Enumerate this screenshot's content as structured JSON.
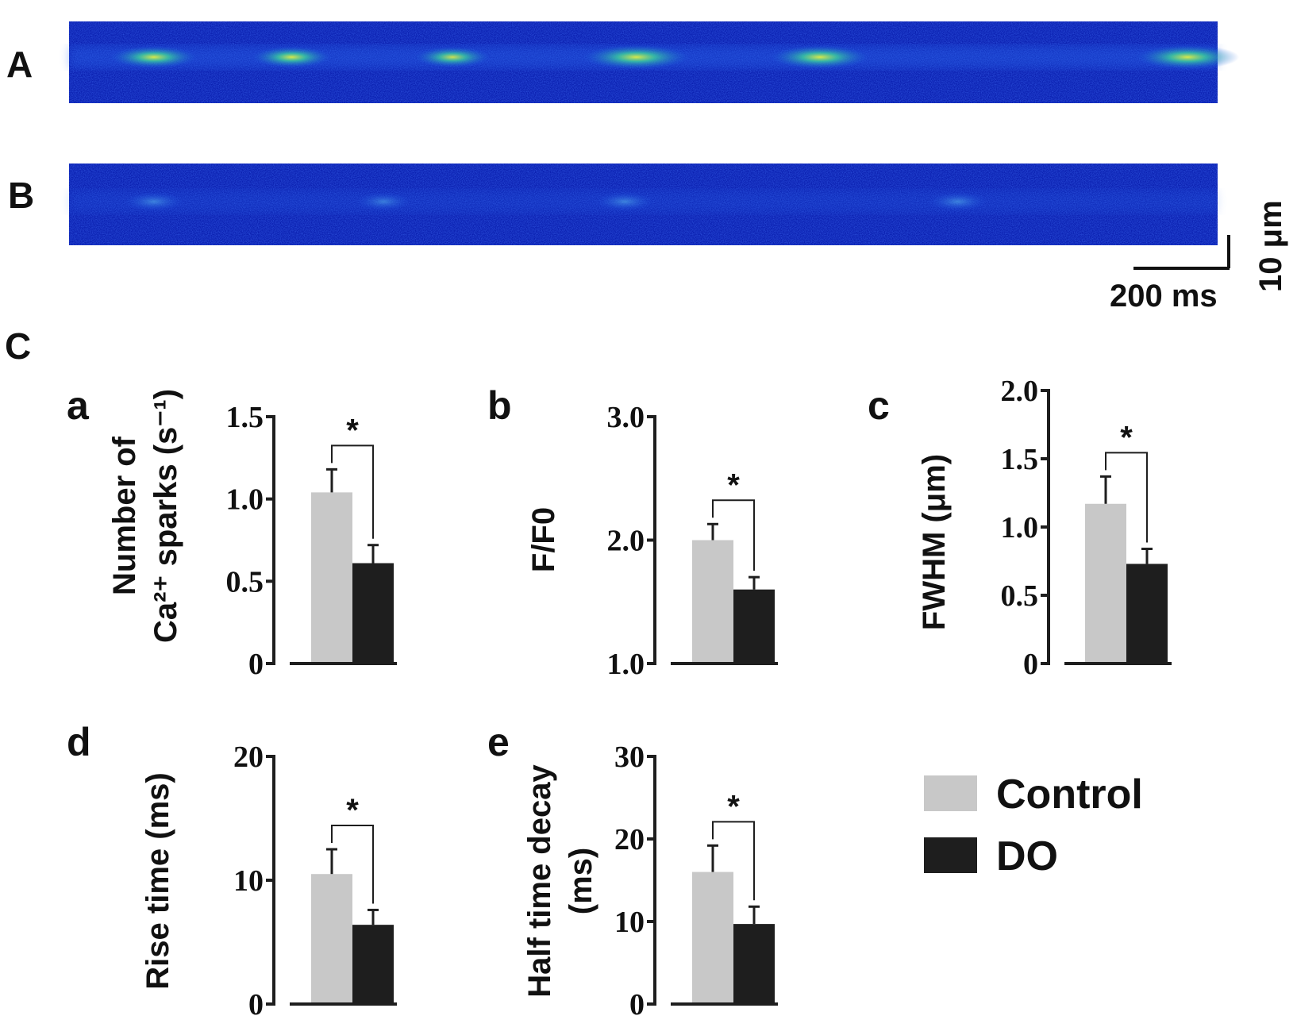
{
  "panel_labels": {
    "A": "A",
    "B": "B",
    "C": "C"
  },
  "scale_bar": {
    "time_label": "200 ms",
    "space_label": "10 μm"
  },
  "legend": {
    "items": [
      {
        "label": "Control",
        "color": "#c8c8c8"
      },
      {
        "label": "DO",
        "color": "#1e1e1e"
      }
    ]
  },
  "colors": {
    "control": "#c8c8c8",
    "do": "#1e1e1e",
    "linescan_bg": "#0a1fb0",
    "axis": "#1e1e1e"
  },
  "linescans": [
    {
      "name": "A",
      "spark_times": [
        0.06,
        0.18,
        0.32,
        0.48,
        0.64,
        0.96
      ],
      "spark_strength": [
        0.7,
        0.6,
        0.55,
        0.95,
        0.85,
        0.9
      ]
    },
    {
      "name": "B",
      "spark_times": [
        0.06,
        0.26,
        0.47,
        0.76
      ],
      "spark_strength": [
        0.35,
        0.3,
        0.35,
        0.35
      ]
    }
  ],
  "chart_data": [
    {
      "type": "bar",
      "letter": "a",
      "ylabel": [
        "Number of",
        "Ca²⁺ sparks (s⁻¹)"
      ],
      "ylim": [
        0,
        1.5
      ],
      "yticks": [
        "0",
        "0.5",
        "1.0",
        "1.5"
      ],
      "ytick_values": [
        0,
        0.5,
        1.0,
        1.5
      ],
      "categories": [
        "Control",
        "DO"
      ],
      "values": [
        1.04,
        0.61
      ],
      "errors": [
        0.14,
        0.11
      ],
      "significance": "*"
    },
    {
      "type": "bar",
      "letter": "b",
      "ylabel": [
        "F/F0"
      ],
      "ylim": [
        1.0,
        3.0
      ],
      "yticks": [
        "1.0",
        "2.0",
        "3.0"
      ],
      "ytick_values": [
        1.0,
        2.0,
        3.0
      ],
      "categories": [
        "Control",
        "DO"
      ],
      "values": [
        2.0,
        1.6
      ],
      "errors": [
        0.13,
        0.1
      ],
      "significance": "*"
    },
    {
      "type": "bar",
      "letter": "c",
      "ylabel": [
        "FWHM (μm)"
      ],
      "ylim": [
        0,
        2.0
      ],
      "yticks": [
        "0",
        "0.5",
        "1.0",
        "1.5",
        "2.0"
      ],
      "ytick_values": [
        0,
        0.5,
        1.0,
        1.5,
        2.0
      ],
      "categories": [
        "Control",
        "DO"
      ],
      "values": [
        1.17,
        0.73
      ],
      "errors": [
        0.2,
        0.11
      ],
      "significance": "*"
    },
    {
      "type": "bar",
      "letter": "d",
      "ylabel": [
        "Rise time (ms)"
      ],
      "ylim": [
        0,
        20
      ],
      "yticks": [
        "0",
        "10",
        "20"
      ],
      "ytick_values": [
        0,
        10,
        20
      ],
      "categories": [
        "Control",
        "DO"
      ],
      "values": [
        10.5,
        6.4
      ],
      "errors": [
        2.0,
        1.2
      ],
      "significance": "*"
    },
    {
      "type": "bar",
      "letter": "e",
      "ylabel": [
        "Half time decay",
        "(ms)"
      ],
      "ylim": [
        0,
        30
      ],
      "yticks": [
        "0",
        "10",
        "20",
        "30"
      ],
      "ytick_values": [
        0,
        10,
        20,
        30
      ],
      "categories": [
        "Control",
        "DO"
      ],
      "values": [
        16.0,
        9.7
      ],
      "errors": [
        3.2,
        2.1
      ],
      "significance": "*"
    }
  ]
}
